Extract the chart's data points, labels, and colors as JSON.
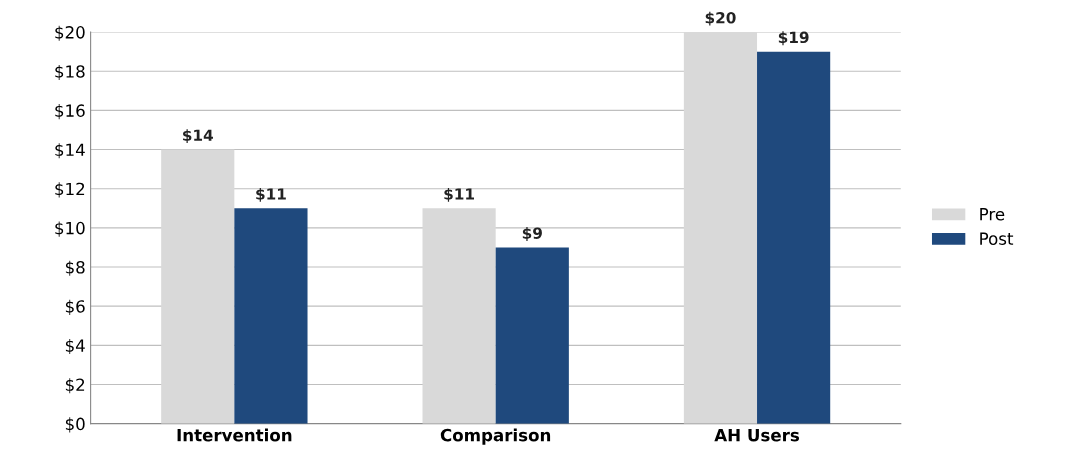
{
  "chart_data": {
    "type": "bar",
    "categories": [
      "Intervention",
      "Comparison",
      "AH Users"
    ],
    "series": [
      {
        "name": "Pre",
        "color": "#d9d9d9",
        "values": [
          14,
          11,
          20
        ],
        "value_labels": [
          "$14",
          "$11",
          "$20"
        ]
      },
      {
        "name": "Post",
        "color": "#1f497d",
        "values": [
          11,
          9,
          19
        ],
        "value_labels": [
          "$11",
          "$9",
          "$19"
        ]
      }
    ],
    "ylim": [
      0,
      20
    ],
    "yticks": [
      {
        "value": 0,
        "label": "$0"
      },
      {
        "value": 2,
        "label": "$2"
      },
      {
        "value": 4,
        "label": "$4"
      },
      {
        "value": 6,
        "label": "$6"
      },
      {
        "value": 8,
        "label": "$8"
      },
      {
        "value": 10,
        "label": "$10"
      },
      {
        "value": 12,
        "label": "$12"
      },
      {
        "value": 14,
        "label": "$14"
      },
      {
        "value": 16,
        "label": "$16"
      },
      {
        "value": 18,
        "label": "$18"
      },
      {
        "value": 20,
        "label": "$20"
      }
    ],
    "grid": "y",
    "legend": "right"
  }
}
